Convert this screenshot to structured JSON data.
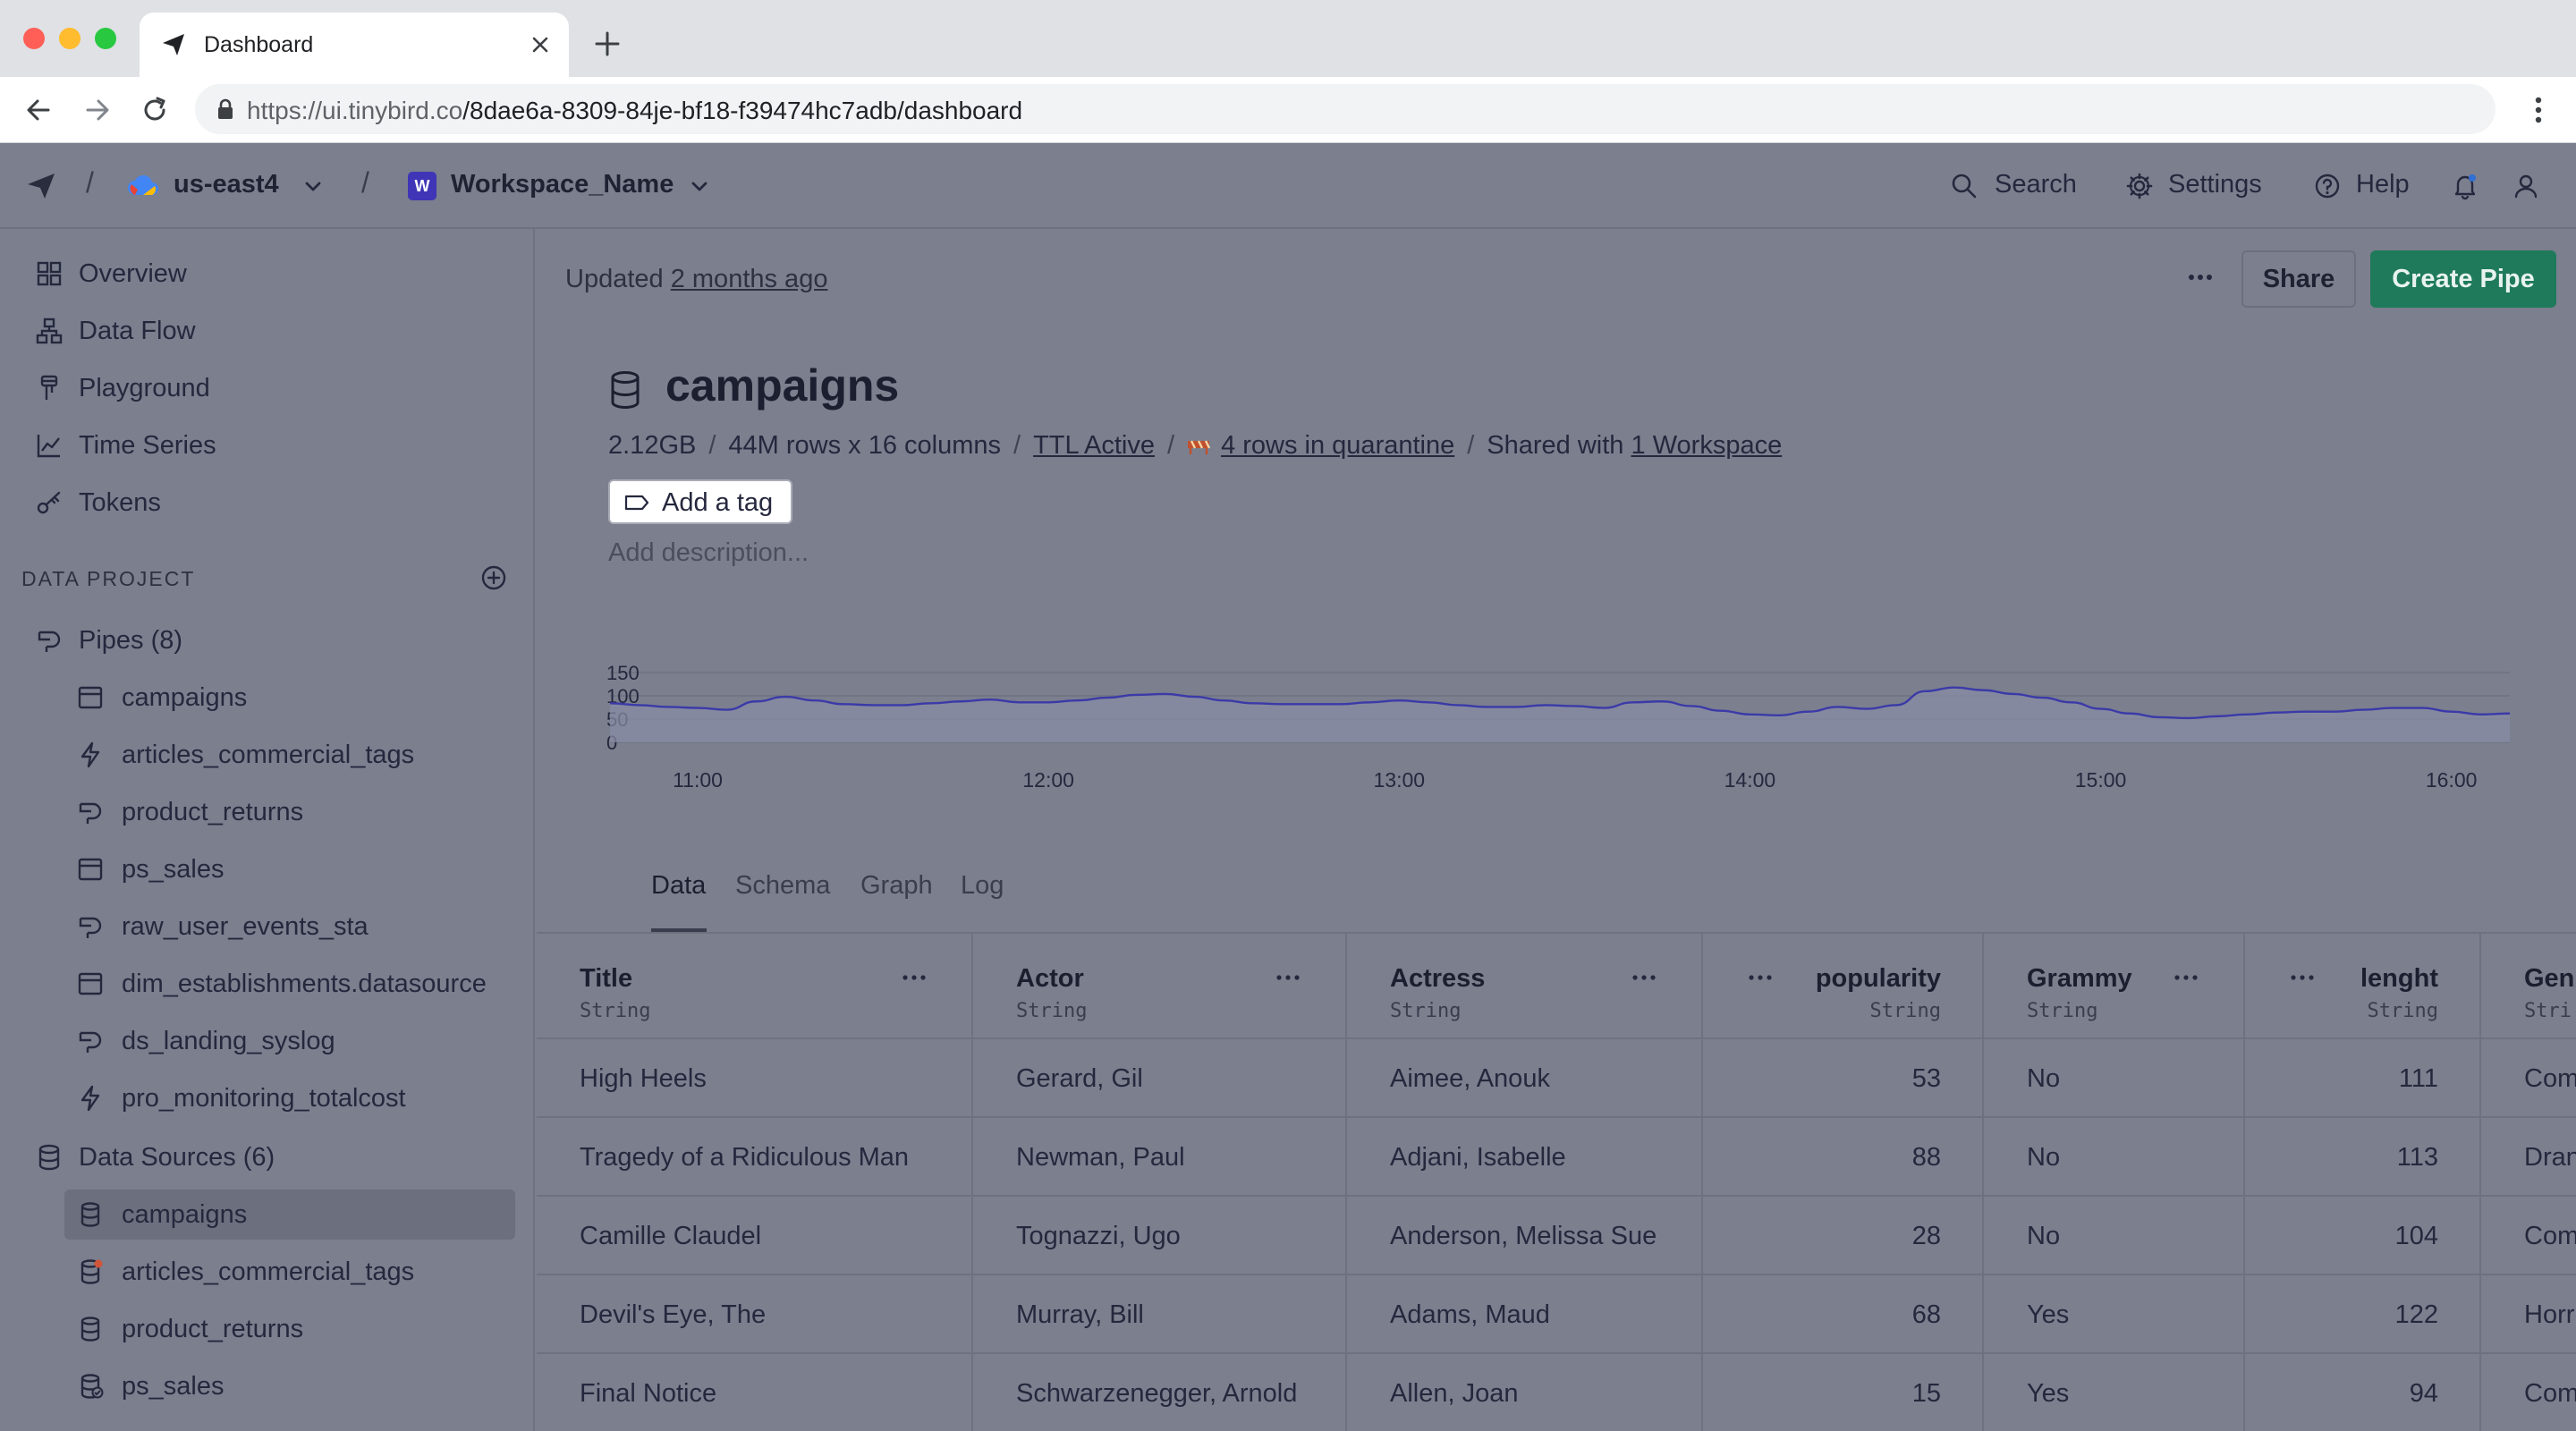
{
  "browser": {
    "tab_title": "Dashboard",
    "url_host": "https://ui.tinybird.co",
    "url_path": "/8dae6a-8309-84je-bf18-f39474hc7adb/dashboard",
    "colors": {
      "close": "#ff5f57",
      "minimize": "#febc2e",
      "maximize": "#28c840"
    }
  },
  "header": {
    "separator": "/",
    "region": "us-east4",
    "workspace_initial": "W",
    "workspace_name": "Workspace_Name",
    "search": "Search",
    "settings": "Settings",
    "help": "Help"
  },
  "sidebar": {
    "nav": [
      {
        "label": "Overview",
        "icon": "grid-icon"
      },
      {
        "label": "Data Flow",
        "icon": "flow-icon"
      },
      {
        "label": "Playground",
        "icon": "playground-icon"
      },
      {
        "label": "Time Series",
        "icon": "chart-icon"
      },
      {
        "label": "Tokens",
        "icon": "key-icon"
      }
    ],
    "section_title": "DATA PROJECT",
    "pipes_label": "Pipes (8)",
    "pipes": [
      {
        "label": "campaigns",
        "icon": "table-icon"
      },
      {
        "label": "articles_commercial_tags",
        "icon": "bolt-icon"
      },
      {
        "label": "product_returns",
        "icon": "pipe-icon"
      },
      {
        "label": "ps_sales",
        "icon": "table-icon"
      },
      {
        "label": "raw_user_events_sta",
        "icon": "pipe-icon"
      },
      {
        "label": "dim_establishments.datasource",
        "icon": "table-icon"
      },
      {
        "label": "ds_landing_syslog",
        "icon": "pipe-icon"
      },
      {
        "label": "pro_monitoring_totalcost",
        "icon": "bolt-icon"
      }
    ],
    "datasources_label": "Data Sources (6)",
    "datasources": [
      {
        "label": "campaigns",
        "icon": "database-icon",
        "active": true
      },
      {
        "label": "articles_commercial_tags",
        "icon": "database-alert-icon"
      },
      {
        "label": "product_returns",
        "icon": "database-icon"
      },
      {
        "label": "ps_sales",
        "icon": "database-shared-icon"
      }
    ]
  },
  "main": {
    "updated_prefix": "Updated",
    "updated_link": "2 months ago",
    "share": "Share",
    "create_pipe": "Create Pipe",
    "title": "campaigns",
    "meta": {
      "size": "2.12GB",
      "rows": "44M rows x 16 columns",
      "ttl": "TTL Active",
      "quarantine": "4 rows in quarantine",
      "shared_prefix": "Shared with",
      "shared_link": "1 Workspace"
    },
    "add_tag": "Add a tag",
    "add_description": "Add description...",
    "tabs": [
      "Data",
      "Schema",
      "Graph",
      "Log"
    ],
    "active_tab": "Data"
  },
  "chart_data": {
    "type": "area",
    "y_ticks": [
      "150",
      "100",
      "50",
      "0"
    ],
    "ylim": [
      0,
      150
    ],
    "x_ticks": [
      "11:00",
      "12:00",
      "13:00",
      "14:00",
      "15:00",
      "16:00"
    ],
    "x": [
      "10:45",
      "10:50",
      "10:55",
      "11:00",
      "11:05",
      "11:10",
      "11:15",
      "11:20",
      "11:25",
      "11:30",
      "11:35",
      "11:40",
      "11:45",
      "11:50",
      "11:55",
      "12:00",
      "12:05",
      "12:10",
      "12:15",
      "12:20",
      "12:25",
      "12:30",
      "12:35",
      "12:40",
      "12:45",
      "12:50",
      "12:55",
      "13:00",
      "13:05",
      "13:10",
      "13:15",
      "13:20",
      "13:25",
      "13:30",
      "13:35",
      "13:40",
      "13:45",
      "13:50",
      "13:55",
      "14:00",
      "14:05",
      "14:10",
      "14:15",
      "14:20",
      "14:25",
      "14:30",
      "14:35",
      "14:40",
      "14:45",
      "14:50",
      "14:55",
      "15:00",
      "15:05",
      "15:10",
      "15:15",
      "15:20",
      "15:25",
      "15:30",
      "15:35",
      "15:40",
      "15:45",
      "15:50",
      "15:55",
      "16:00",
      "16:05",
      "16:10"
    ],
    "values": [
      84,
      80,
      76,
      74,
      70,
      88,
      98,
      90,
      82,
      80,
      80,
      84,
      88,
      92,
      86,
      86,
      90,
      96,
      102,
      104,
      98,
      90,
      84,
      82,
      82,
      82,
      86,
      90,
      86,
      80,
      76,
      76,
      80,
      78,
      74,
      86,
      88,
      78,
      68,
      60,
      58,
      66,
      76,
      72,
      80,
      110,
      118,
      112,
      104,
      96,
      86,
      72,
      62,
      54,
      52,
      56,
      60,
      64,
      66,
      66,
      70,
      74,
      74,
      66,
      60,
      62
    ],
    "line_color": "#3b3aa8",
    "fill_color": "#8a8da6"
  },
  "table": {
    "columns": [
      {
        "name": "Title",
        "type": "String",
        "align": "left"
      },
      {
        "name": "Actor",
        "type": "String",
        "align": "left"
      },
      {
        "name": "Actress",
        "type": "String",
        "align": "left"
      },
      {
        "name": "popularity",
        "type": "String",
        "align": "right"
      },
      {
        "name": "Grammy",
        "type": "String",
        "align": "left"
      },
      {
        "name": "lenght",
        "type": "String",
        "align": "right"
      },
      {
        "name": "Gen",
        "type": "Stri",
        "align": "left"
      }
    ],
    "rows": [
      [
        "High Heels",
        "Gerard, Gil",
        "Aimee, Anouk",
        "53",
        "No",
        "111",
        "Com"
      ],
      [
        "Tragedy of a Ridiculous Man",
        "Newman, Paul",
        "Adjani, Isabelle",
        "88",
        "No",
        "113",
        "Dran"
      ],
      [
        "Camille Claudel",
        "Tognazzi, Ugo",
        "Anderson, Melissa Sue",
        "28",
        "No",
        "104",
        "Com"
      ],
      [
        "Devil's Eye, The",
        "Murray, Bill",
        "Adams, Maud",
        "68",
        "Yes",
        "122",
        "Horr"
      ],
      [
        "Final Notice",
        "Schwarzenegger, Arnold",
        "Allen, Joan",
        "15",
        "Yes",
        "94",
        "Com"
      ]
    ]
  }
}
